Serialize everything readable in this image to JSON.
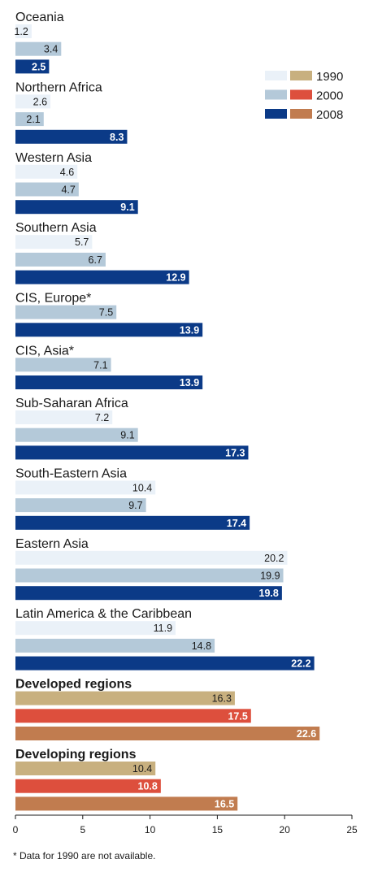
{
  "chart_data": {
    "type": "bar",
    "orientation": "horizontal",
    "xlim": [
      0,
      25
    ],
    "xticks": [
      0,
      5,
      10,
      15,
      20,
      25
    ],
    "groups": [
      {
        "label": "Oceania",
        "bold": false,
        "bars": [
          {
            "year": "1990",
            "value": 1.2,
            "label": "1.2"
          },
          {
            "year": "2000",
            "value": 3.4,
            "label": "3.4"
          },
          {
            "year": "2008",
            "value": 2.5,
            "label": "2.5"
          }
        ]
      },
      {
        "label": "Northern Africa",
        "bold": false,
        "bars": [
          {
            "year": "1990",
            "value": 2.6,
            "label": "2.6"
          },
          {
            "year": "2000",
            "value": 2.1,
            "label": "2.1"
          },
          {
            "year": "2008",
            "value": 8.3,
            "label": "8.3"
          }
        ]
      },
      {
        "label": "Western Asia",
        "bold": false,
        "bars": [
          {
            "year": "1990",
            "value": 4.6,
            "label": "4.6"
          },
          {
            "year": "2000",
            "value": 4.7,
            "label": "4.7"
          },
          {
            "year": "2008",
            "value": 9.1,
            "label": "9.1"
          }
        ]
      },
      {
        "label": "Southern Asia",
        "bold": false,
        "bars": [
          {
            "year": "1990",
            "value": 5.7,
            "label": "5.7"
          },
          {
            "year": "2000",
            "value": 6.7,
            "label": "6.7"
          },
          {
            "year": "2008",
            "value": 12.9,
            "label": "12.9"
          }
        ]
      },
      {
        "label": "CIS, Europe*",
        "bold": false,
        "bars": [
          {
            "year": "2000",
            "value": 7.5,
            "label": "7.5"
          },
          {
            "year": "2008",
            "value": 13.9,
            "label": "13.9"
          }
        ]
      },
      {
        "label": "CIS, Asia*",
        "bold": false,
        "bars": [
          {
            "year": "2000",
            "value": 7.1,
            "label": "7.1"
          },
          {
            "year": "2008",
            "value": 13.9,
            "label": "13.9"
          }
        ]
      },
      {
        "label": "Sub-Saharan Africa",
        "bold": false,
        "bars": [
          {
            "year": "1990",
            "value": 7.2,
            "label": "7.2"
          },
          {
            "year": "2000",
            "value": 9.1,
            "label": "9.1"
          },
          {
            "year": "2008",
            "value": 17.3,
            "label": "17.3"
          }
        ]
      },
      {
        "label": "South-Eastern Asia",
        "bold": false,
        "bars": [
          {
            "year": "1990",
            "value": 10.4,
            "label": "10.4"
          },
          {
            "year": "2000",
            "value": 9.7,
            "label": "9.7"
          },
          {
            "year": "2008",
            "value": 17.4,
            "label": "17.4"
          }
        ]
      },
      {
        "label": "Eastern Asia",
        "bold": false,
        "bars": [
          {
            "year": "1990",
            "value": 20.2,
            "label": "20.2"
          },
          {
            "year": "2000",
            "value": 19.9,
            "label": "19.9"
          },
          {
            "year": "2008",
            "value": 19.8,
            "label": "19.8"
          }
        ]
      },
      {
        "label": "Latin America & the Caribbean",
        "bold": false,
        "bars": [
          {
            "year": "1990",
            "value": 11.9,
            "label": "11.9"
          },
          {
            "year": "2000",
            "value": 14.8,
            "label": "14.8"
          },
          {
            "year": "2008",
            "value": 22.2,
            "label": "22.2"
          }
        ]
      },
      {
        "label": "Developed regions",
        "bold": true,
        "aggregate": true,
        "bars": [
          {
            "year": "1990",
            "value": 16.3,
            "label": "16.3"
          },
          {
            "year": "2000",
            "value": 17.5,
            "label": "17.5"
          },
          {
            "year": "2008",
            "value": 22.6,
            "label": "22.6"
          }
        ]
      },
      {
        "label": "Developing regions",
        "bold": true,
        "aggregate": true,
        "bars": [
          {
            "year": "1990",
            "value": 10.4,
            "label": "10.4"
          },
          {
            "year": "2000",
            "value": 10.8,
            "label": "10.8"
          },
          {
            "year": "2008",
            "value": 16.5,
            "label": "16.5"
          }
        ]
      }
    ],
    "legend": {
      "placement": "top-right",
      "entries": [
        "1990",
        "2000",
        "2008"
      ]
    },
    "colors": {
      "regions": {
        "1990": "#eaf1f8",
        "2000": "#b4c9d9",
        "2008": "#0b3a87"
      },
      "aggregates": {
        "1990": "#c8b07f",
        "2000": "#dd4f3d",
        "2008": "#c17c4f"
      },
      "region_label_dark": "#ffffff",
      "label_light": "#1a1a1a"
    }
  },
  "footnote": "* Data for 1990 are not available."
}
